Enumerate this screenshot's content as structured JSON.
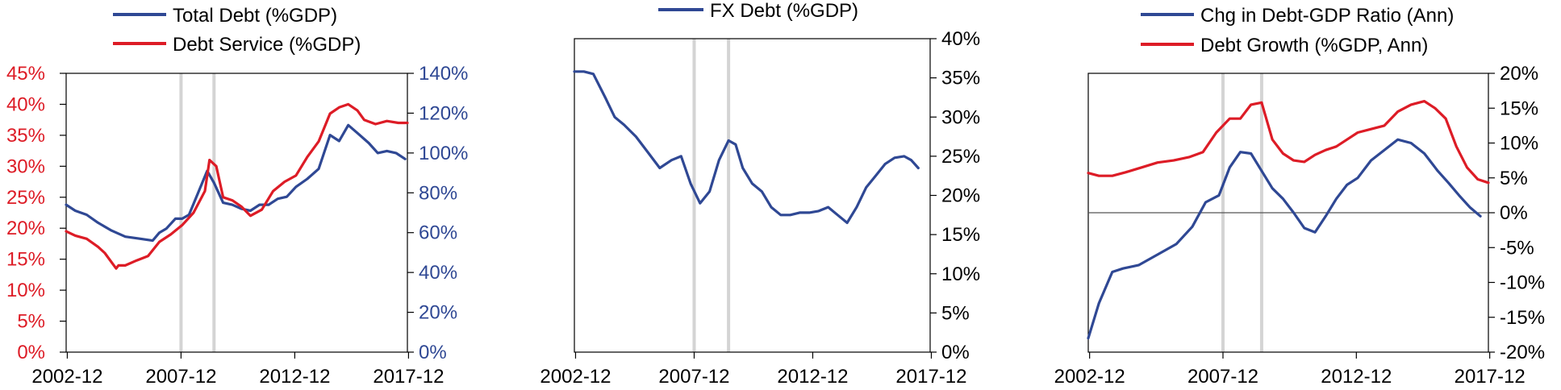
{
  "colors": {
    "blue": "#2f4894",
    "red": "#dd1c26",
    "shade": "#d4d4d4"
  },
  "chart_data": [
    {
      "type": "line",
      "title": "",
      "legend": [
        "Total Debt (%GDP)",
        "Debt Service (%GDP)"
      ],
      "legend_position": "top",
      "x_ticks": [
        "2002-12",
        "2007-12",
        "2012-12",
        "2017-12"
      ],
      "xlim": [
        2002.9,
        2017.9
      ],
      "recession_lines": [
        2007.95,
        2009.4
      ],
      "left_axis": {
        "ticks": [
          "0%",
          "5%",
          "10%",
          "15%",
          "20%",
          "25%",
          "30%",
          "35%",
          "40%",
          "45%"
        ],
        "ylim": [
          0,
          45
        ],
        "color": "red"
      },
      "right_axis": {
        "ticks": [
          "0%",
          "20%",
          "40%",
          "60%",
          "80%",
          "100%",
          "120%",
          "140%"
        ],
        "ylim": [
          0,
          140
        ],
        "color": "blue"
      },
      "series": [
        {
          "name": "Total Debt (%GDP)",
          "axis": "right",
          "color": "blue",
          "x": [
            2002.9,
            2003.3,
            2003.8,
            2004.3,
            2004.9,
            2005.5,
            2006.1,
            2006.7,
            2007.0,
            2007.3,
            2007.7,
            2008.0,
            2008.3,
            2008.7,
            2009.1,
            2009.4,
            2009.8,
            2010.2,
            2010.6,
            2011.0,
            2011.4,
            2011.8,
            2012.2,
            2012.6,
            2013.0,
            2013.5,
            2014.0,
            2014.5,
            2014.9,
            2015.3,
            2015.7,
            2016.2,
            2016.6,
            2017.0,
            2017.4,
            2017.8
          ],
          "values": [
            74,
            71,
            69,
            65,
            61,
            58,
            57,
            56,
            60,
            62,
            67,
            67,
            69,
            80,
            91,
            85,
            75,
            74,
            72,
            71,
            74,
            74,
            77,
            78,
            83,
            87,
            92,
            109,
            106,
            114,
            110,
            105,
            100,
            101,
            100,
            97
          ]
        },
        {
          "name": "Debt Service (%GDP)",
          "axis": "left",
          "color": "red",
          "x": [
            2002.9,
            2003.3,
            2003.8,
            2004.3,
            2004.6,
            2005.0,
            2005.1,
            2005.2,
            2005.5,
            2006.0,
            2006.5,
            2007.0,
            2007.5,
            2008.0,
            2008.5,
            2009.0,
            2009.2,
            2009.5,
            2009.8,
            2010.2,
            2010.6,
            2011.0,
            2011.5,
            2012.0,
            2012.5,
            2013.0,
            2013.5,
            2014.0,
            2014.5,
            2014.9,
            2015.3,
            2015.7,
            2016.0,
            2016.5,
            2017.0,
            2017.5,
            2017.9
          ],
          "values": [
            19.5,
            18.8,
            18.3,
            17.0,
            16.0,
            14.0,
            13.5,
            14.0,
            14.0,
            14.8,
            15.5,
            17.8,
            19.0,
            20.5,
            22.5,
            26.0,
            31.0,
            30.0,
            25.0,
            24.5,
            23.5,
            22.0,
            23.0,
            26.0,
            27.5,
            28.5,
            31.5,
            34.0,
            38.5,
            39.5,
            40.0,
            39.0,
            37.5,
            36.8,
            37.3,
            37.0,
            37.0
          ]
        }
      ]
    },
    {
      "type": "line",
      "title": "",
      "legend": [
        "FX Debt (%GDP)"
      ],
      "legend_position": "top",
      "x_ticks": [
        "2002-12",
        "2007-12",
        "2012-12",
        "2017-12"
      ],
      "xlim": [
        2002.9,
        2017.9
      ],
      "recession_lines": [
        2007.95,
        2009.4
      ],
      "right_axis": {
        "ticks": [
          "0%",
          "5%",
          "10%",
          "15%",
          "20%",
          "25%",
          "30%",
          "35%",
          "40%"
        ],
        "ylim": [
          0,
          40
        ],
        "color": "black"
      },
      "series": [
        {
          "name": "FX Debt (%GDP)",
          "axis": "right",
          "color": "blue",
          "x": [
            2002.9,
            2003.3,
            2003.7,
            2004.2,
            2004.6,
            2005.0,
            2005.5,
            2006.0,
            2006.5,
            2007.0,
            2007.4,
            2007.8,
            2008.2,
            2008.6,
            2009.0,
            2009.4,
            2009.7,
            2010.0,
            2010.4,
            2010.8,
            2011.2,
            2011.6,
            2012.0,
            2012.4,
            2012.8,
            2013.2,
            2013.6,
            2014.0,
            2014.4,
            2014.8,
            2015.2,
            2015.6,
            2016.0,
            2016.4,
            2016.8,
            2017.1,
            2017.4
          ],
          "values": [
            35.8,
            35.8,
            35.5,
            32.5,
            30.0,
            29.0,
            27.5,
            25.5,
            23.5,
            24.5,
            25.0,
            21.5,
            19.0,
            20.5,
            24.5,
            27.0,
            26.5,
            23.5,
            21.5,
            20.5,
            18.5,
            17.5,
            17.5,
            17.8,
            17.8,
            18.0,
            18.5,
            17.5,
            16.5,
            18.5,
            21.0,
            22.5,
            24.0,
            24.8,
            25.0,
            24.5,
            23.5
          ]
        }
      ]
    },
    {
      "type": "line",
      "title": "",
      "legend": [
        "Chg in Debt-GDP Ratio (Ann)",
        "Debt Growth (%GDP, Ann)"
      ],
      "legend_position": "top",
      "x_ticks": [
        "2002-12",
        "2007-12",
        "2012-12",
        "2017-12"
      ],
      "xlim": [
        2002.9,
        2017.9
      ],
      "recession_lines": [
        2007.95,
        2009.4
      ],
      "right_axis": {
        "ticks": [
          "-20%",
          "-15%",
          "-10%",
          "-5%",
          "0%",
          "5%",
          "10%",
          "15%",
          "20%"
        ],
        "ylim": [
          -20,
          20
        ],
        "color": "black"
      },
      "series": [
        {
          "name": "Chg in Debt-GDP Ratio (Ann)",
          "axis": "right",
          "color": "blue",
          "x": [
            2002.9,
            2003.3,
            2003.8,
            2004.2,
            2004.8,
            2005.5,
            2006.2,
            2006.8,
            2007.3,
            2007.8,
            2008.2,
            2008.6,
            2009.0,
            2009.4,
            2009.8,
            2010.2,
            2010.6,
            2011.0,
            2011.4,
            2011.8,
            2012.2,
            2012.6,
            2013.0,
            2013.5,
            2014.0,
            2014.5,
            2015.0,
            2015.5,
            2016.0,
            2016.4,
            2016.8,
            2017.2,
            2017.6
          ],
          "values": [
            -18,
            -13,
            -8.5,
            -8,
            -7.5,
            -6,
            -4.5,
            -2,
            1.5,
            2.5,
            6.5,
            8.7,
            8.5,
            6,
            3.5,
            2,
            0,
            -2.2,
            -2.8,
            -0.5,
            2,
            4,
            5,
            7.5,
            9,
            10.5,
            10,
            8.5,
            6,
            4.3,
            2.5,
            0.8,
            -0.5
          ]
        },
        {
          "name": "Debt Growth (%GDP, Ann)",
          "axis": "right",
          "color": "red",
          "x": [
            2002.9,
            2003.3,
            2003.8,
            2004.3,
            2004.9,
            2005.5,
            2006.1,
            2006.7,
            2007.2,
            2007.7,
            2008.2,
            2008.6,
            2009.0,
            2009.4,
            2009.8,
            2010.2,
            2010.6,
            2011.0,
            2011.4,
            2011.8,
            2012.2,
            2012.6,
            2013.0,
            2013.5,
            2014.0,
            2014.5,
            2015.0,
            2015.5,
            2015.9,
            2016.3,
            2016.7,
            2017.1,
            2017.5,
            2017.9
          ],
          "values": [
            5.7,
            5.3,
            5.3,
            5.8,
            6.5,
            7.2,
            7.5,
            8.0,
            8.7,
            11.5,
            13.5,
            13.5,
            15.5,
            15.8,
            10.5,
            8.5,
            7.5,
            7.3,
            8.3,
            9.0,
            9.5,
            10.5,
            11.5,
            12.0,
            12.5,
            14.5,
            15.5,
            16.0,
            15.0,
            13.5,
            9.5,
            6.5,
            4.8,
            4.3
          ]
        }
      ]
    }
  ]
}
